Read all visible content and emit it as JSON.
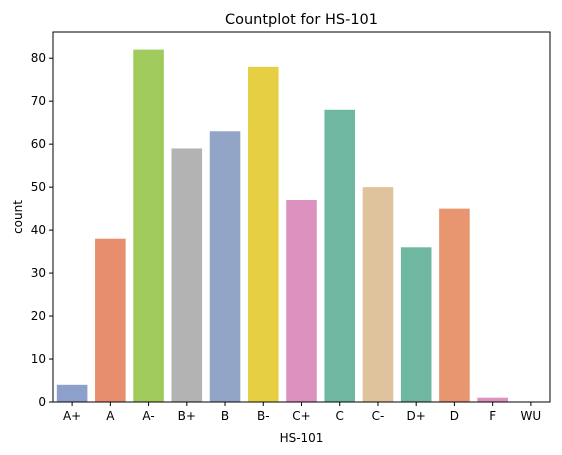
{
  "chart_data": {
    "type": "bar",
    "title": "Countplot for HS-101",
    "xlabel": "HS-101",
    "ylabel": "count",
    "categories": [
      "A+",
      "A",
      "A-",
      "B+",
      "B",
      "B-",
      "C+",
      "C",
      "C-",
      "D+",
      "D",
      "F",
      "WU"
    ],
    "values": [
      4,
      38,
      82,
      59,
      63,
      78,
      47,
      68,
      50,
      36,
      45,
      1,
      0
    ],
    "colors": [
      "#8da0cb",
      "#e78f6c",
      "#a0cb5c",
      "#b3b3b3",
      "#93a5c6",
      "#e7cf44",
      "#dc91bf",
      "#70b7a1",
      "#dec39c",
      "#70b7a1",
      "#e7966f",
      "#dc91bf",
      "#a0cb5c"
    ],
    "ylim": [
      0,
      86.1
    ],
    "yticks": [
      0,
      10,
      20,
      30,
      40,
      50,
      60,
      70,
      80
    ],
    "grid": false,
    "legend": "none"
  }
}
